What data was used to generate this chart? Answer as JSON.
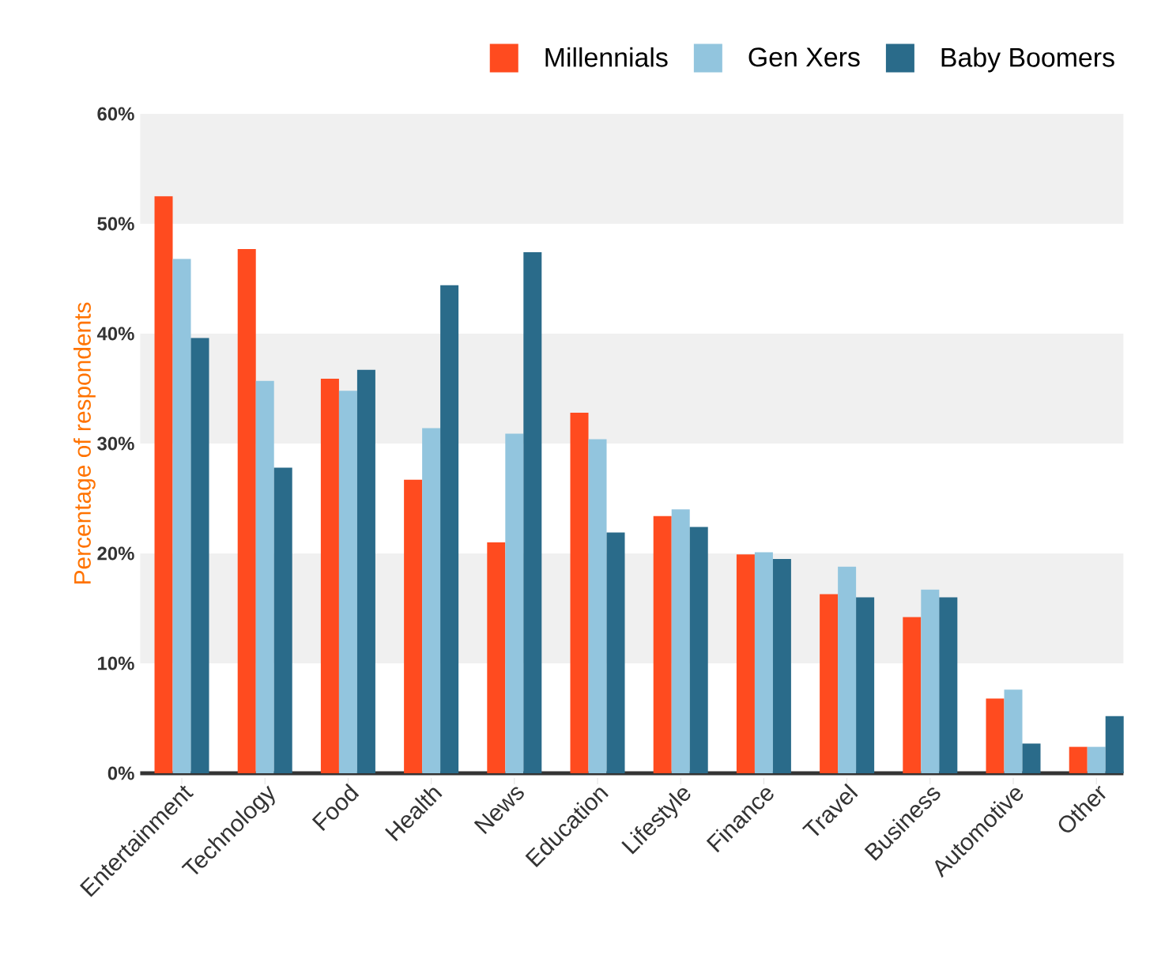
{
  "chart_data": {
    "type": "bar",
    "ylabel": "Percentage of respondents",
    "categories": [
      "Entertainment",
      "Technology",
      "Food",
      "Health",
      "News",
      "Education",
      "Lifestyle",
      "Finance",
      "Travel",
      "Business",
      "Automotive",
      "Other"
    ],
    "series": [
      {
        "name": "Millennials",
        "color": "#ff4b1f",
        "values": [
          52.5,
          47.7,
          35.9,
          26.7,
          21.0,
          32.8,
          23.4,
          19.9,
          16.3,
          14.2,
          6.8,
          2.4
        ]
      },
      {
        "name": "Gen Xers",
        "color": "#92c5de",
        "values": [
          46.8,
          35.7,
          34.8,
          31.4,
          30.9,
          30.4,
          24.0,
          20.1,
          18.8,
          16.7,
          7.6,
          2.4
        ]
      },
      {
        "name": "Baby Boomers",
        "color": "#2a6b8a",
        "values": [
          39.6,
          27.8,
          36.7,
          44.4,
          47.4,
          21.9,
          22.4,
          19.5,
          16.0,
          16.0,
          2.7,
          5.2
        ]
      }
    ],
    "ylim": [
      0,
      60
    ],
    "yticks": [
      {
        "value": 0,
        "label": "0%"
      },
      {
        "value": 10,
        "label": "10%"
      },
      {
        "value": 20,
        "label": "20%"
      },
      {
        "value": 30,
        "label": "30%"
      },
      {
        "value": 40,
        "label": "40%"
      },
      {
        "value": 50,
        "label": "50%"
      },
      {
        "value": 60,
        "label": "60%"
      }
    ],
    "bands": [
      {
        "axis": "y",
        "from": 10,
        "to": 20,
        "color": "#f0f0f0"
      },
      {
        "axis": "y",
        "from": 30,
        "to": 40,
        "color": "#f0f0f0"
      },
      {
        "axis": "y",
        "from": 50,
        "to": 60,
        "color": "#f0f0f0"
      }
    ],
    "legend": "top right"
  }
}
